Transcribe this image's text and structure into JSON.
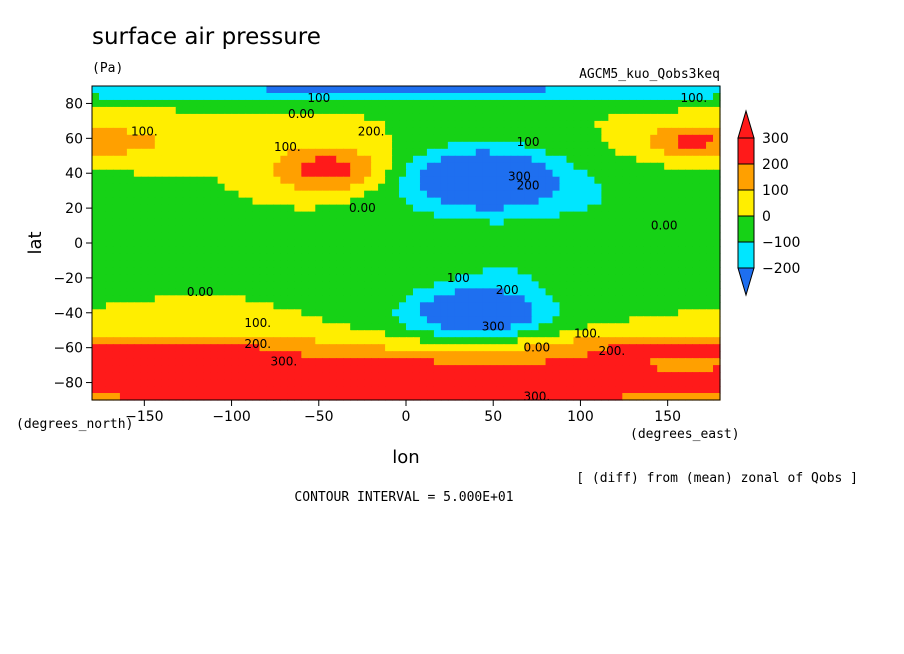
{
  "chart_data": {
    "type": "heatmap",
    "title": "surface air pressure",
    "units": "(Pa)",
    "experiment": "AGCM5_kuo_Qobs3keq",
    "xlabel": "lon",
    "ylabel": "lat",
    "x_units_label": "(degrees_east)",
    "y_units_label": "(degrees_north)",
    "xlim": [
      -180,
      180
    ],
    "ylim": [
      -90,
      90
    ],
    "x_ticks": [
      -150,
      -100,
      -50,
      0,
      50,
      100,
      150
    ],
    "x_tick_labels": [
      "−150",
      "−100",
      "−50",
      "0",
      "50",
      "100",
      "150"
    ],
    "y_ticks": [
      -80,
      -60,
      -40,
      -20,
      0,
      20,
      40,
      60,
      80
    ],
    "y_tick_labels": [
      "−80",
      "−60",
      "−40",
      "−20",
      "0",
      "20",
      "40",
      "60",
      "80"
    ],
    "colorbar": {
      "levels": [
        -300,
        -200,
        -100,
        0,
        100,
        200,
        300,
        400
      ],
      "tick_values": [
        300,
        200,
        100,
        0,
        -100,
        -200
      ],
      "tick_labels": [
        "300",
        "200",
        "100",
        "0",
        "−100",
        "−200"
      ],
      "colors": [
        "#1e6ff0",
        "#00e6ff",
        "#16d216",
        "#ffee00",
        "#ffa000",
        "#ff1a1a",
        "#ff1a1a"
      ]
    },
    "contour_interval": "CONTOUR INTERVAL = 5.000E+01",
    "note": "[ (diff) from (mean) zonal of Qobs ]",
    "contour_labels": [
      {
        "text": "100",
        "lon": -50,
        "lat": 83
      },
      {
        "text": "100.",
        "lon": 165,
        "lat": 83
      },
      {
        "text": "0.00",
        "lon": -60,
        "lat": 74
      },
      {
        "text": "100.",
        "lon": -150,
        "lat": 64
      },
      {
        "text": "200.",
        "lon": -20,
        "lat": 64
      },
      {
        "text": "100",
        "lon": 70,
        "lat": 58
      },
      {
        "text": "100.",
        "lon": -68,
        "lat": 55
      },
      {
        "text": "300",
        "lon": 65,
        "lat": 38
      },
      {
        "text": "200",
        "lon": 70,
        "lat": 33
      },
      {
        "text": "0.00",
        "lon": -25,
        "lat": 20
      },
      {
        "text": "0.00",
        "lon": 148,
        "lat": 10
      },
      {
        "text": "100",
        "lon": 30,
        "lat": -20
      },
      {
        "text": "200",
        "lon": 58,
        "lat": -27
      },
      {
        "text": "0.00",
        "lon": -118,
        "lat": -28
      },
      {
        "text": "100.",
        "lon": -85,
        "lat": -46
      },
      {
        "text": "300",
        "lon": 50,
        "lat": -48
      },
      {
        "text": "100.",
        "lon": 104,
        "lat": -52
      },
      {
        "text": "0.00",
        "lon": 75,
        "lat": -60
      },
      {
        "text": "200.",
        "lon": -85,
        "lat": -58
      },
      {
        "text": "200.",
        "lon": 118,
        "lat": -62
      },
      {
        "text": "300.",
        "lon": -70,
        "lat": -68
      },
      {
        "text": "300.",
        "lon": 75,
        "lat": -88
      }
    ],
    "features": [
      {
        "name": "south-polar-high",
        "lon": -20,
        "lat": -80,
        "value": 350,
        "slon": 260,
        "slat": 16
      },
      {
        "name": "south-rim-high-west",
        "lon": -120,
        "lat": -60,
        "value": 150,
        "slon": 90,
        "slat": 8
      },
      {
        "name": "south-rim-high-east",
        "lon": 130,
        "lat": -60,
        "value": 130,
        "slon": 70,
        "slat": 8
      },
      {
        "name": "north-mid-high",
        "lon": -45,
        "lat": 42,
        "value": 260,
        "slon": 32,
        "slat": 14
      },
      {
        "name": "north-west-high",
        "lon": -160,
        "lat": 58,
        "value": 120,
        "slon": 45,
        "slat": 12
      },
      {
        "name": "north-east-high",
        "lon": 160,
        "lat": 58,
        "value": 170,
        "slon": 25,
        "slat": 9
      },
      {
        "name": "north-low",
        "lon": 45,
        "lat": 38,
        "value": -380,
        "slon": 42,
        "slat": 17
      },
      {
        "name": "south-low",
        "lon": 40,
        "lat": -40,
        "value": -380,
        "slon": 40,
        "slat": 14
      },
      {
        "name": "central-low-north",
        "lon": 80,
        "lat": 25,
        "value": -90,
        "slon": 110,
        "slat": 18
      },
      {
        "name": "central-low-south",
        "lon": 60,
        "lat": -12,
        "value": -90,
        "slon": 60,
        "slat": 18
      },
      {
        "name": "arctic-low",
        "lon": 0,
        "lat": 88,
        "value": -220,
        "slon": 260,
        "slat": 7
      }
    ]
  }
}
